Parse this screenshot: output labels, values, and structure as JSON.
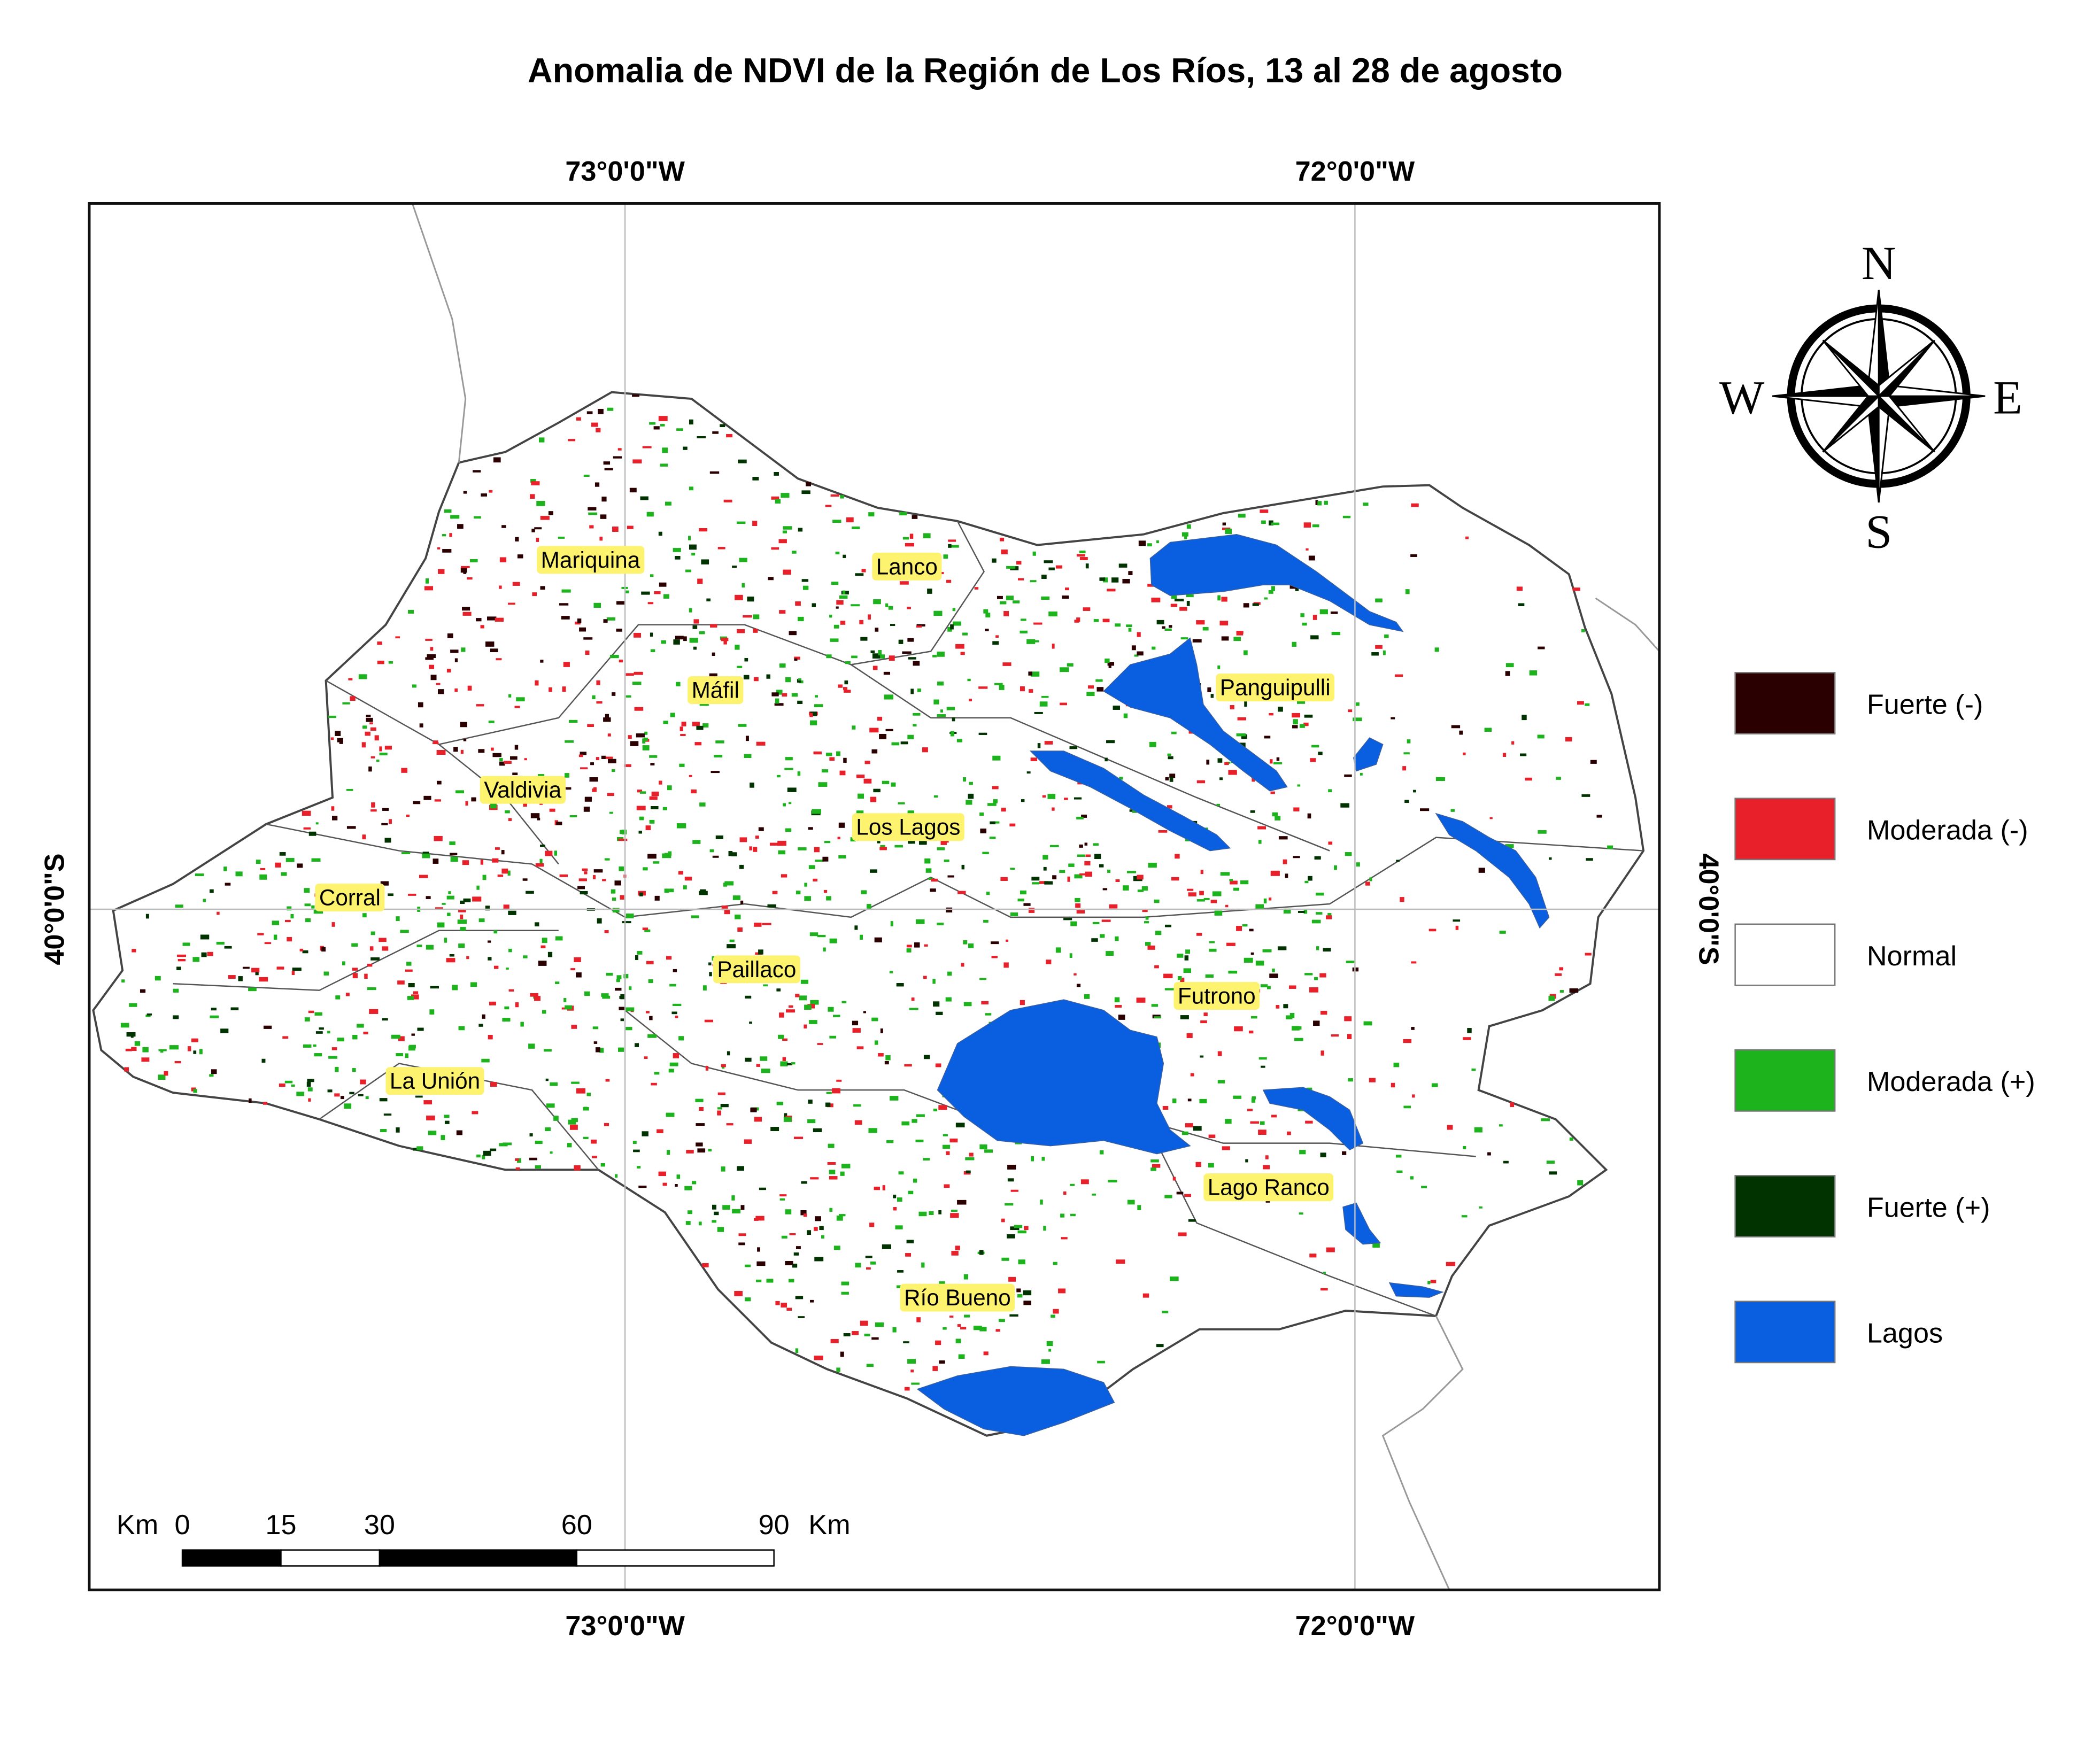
{
  "title": "Anomalia de NDVI de la Región de Los Ríos, 13 al 28 de agosto",
  "graticule": {
    "top": [
      "73°0'0\"W",
      "72°0'0\"W"
    ],
    "bottom": [
      "73°0'0\"W",
      "72°0'0\"W"
    ],
    "left": "40°0'0\"S",
    "right": "40°0'0\"S"
  },
  "compass": {
    "n": "N",
    "s": "S",
    "e": "E",
    "w": "W"
  },
  "towns": [
    "Mariquina",
    "Lanco",
    "Máfil",
    "Panguipulli",
    "Valdivia",
    "Los Lagos",
    "Corral",
    "Paillaco",
    "Futrono",
    "La Unión",
    "Lago Ranco",
    "Río Bueno"
  ],
  "legend": [
    {
      "label": "Fuerte (-)",
      "color": "#2b0000"
    },
    {
      "label": "Moderada (-)",
      "color": "#e8202a"
    },
    {
      "label": "Normal",
      "color": "#ffffff"
    },
    {
      "label": "Moderada (+)",
      "color": "#1db31d"
    },
    {
      "label": "Fuerte (+)",
      "color": "#003300"
    },
    {
      "label": "Lagos",
      "color": "#0a5fe0"
    }
  ],
  "scale_bar": {
    "unit": "Km",
    "ticks": [
      0,
      15,
      30,
      60,
      90
    ]
  }
}
